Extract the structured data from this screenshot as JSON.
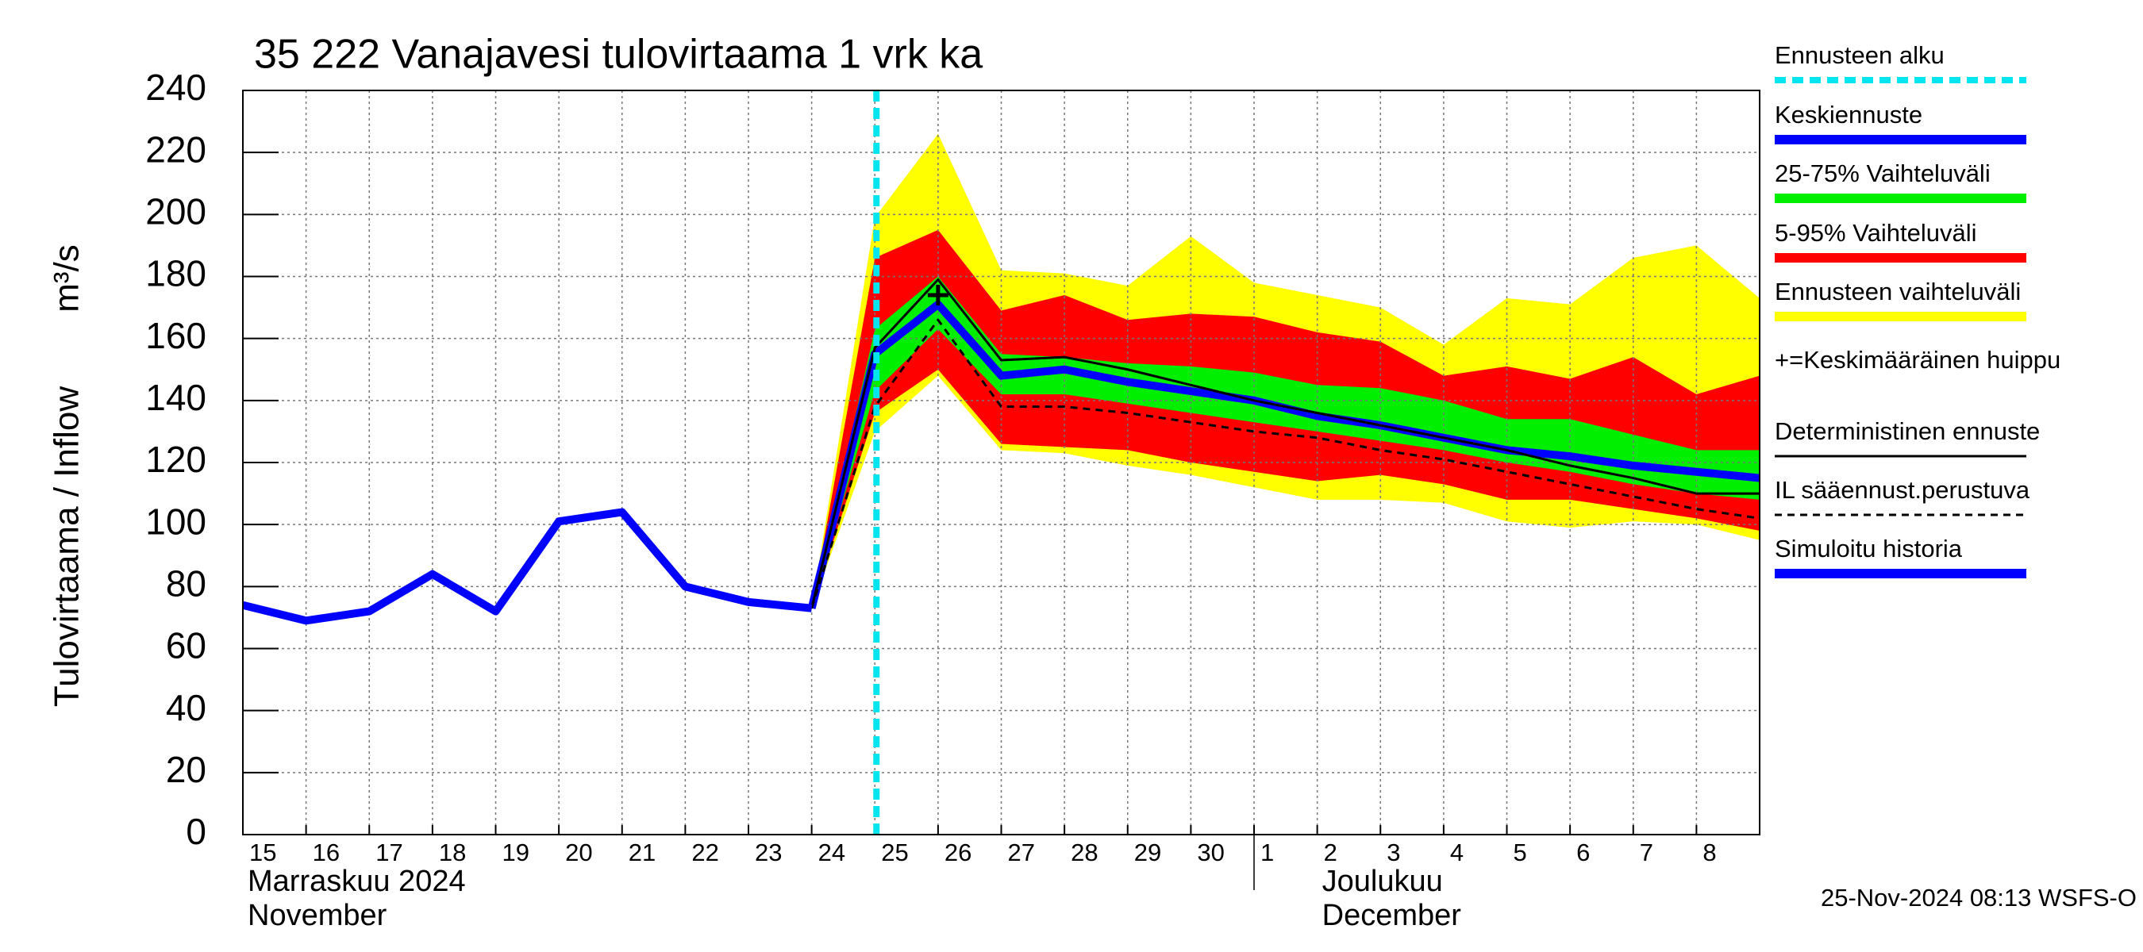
{
  "chart_data": {
    "type": "line",
    "title": "35 222 Vanajavesi tulovirtaama 1 vrk ka",
    "y_label": "Tulovirtaama / Inflow",
    "y_unit": "m³/s",
    "footer": "25-Nov-2024 08:13 WSFS-O",
    "categories": [
      "15",
      "16",
      "17",
      "18",
      "19",
      "20",
      "21",
      "22",
      "23",
      "24",
      "25",
      "26",
      "27",
      "28",
      "29",
      "30",
      "1",
      "2",
      "3",
      "4",
      "5",
      "6",
      "7",
      "8",
      null
    ],
    "month_labels": [
      [
        "Marraskuu 2024",
        "November"
      ],
      [
        "Joulukuu",
        "December"
      ]
    ],
    "ylim": [
      0,
      240
    ],
    "yticks": [
      0,
      20,
      40,
      60,
      80,
      100,
      120,
      140,
      160,
      180,
      200,
      220,
      240
    ],
    "grid": true,
    "series": [
      {
        "name": "Ennusteen alku",
        "color": "#00e5ee",
        "kind": "vline",
        "x": 10
      },
      {
        "name": "Keskiennuste",
        "color": "#0000ff",
        "kind": "line",
        "style": "thick",
        "values": [
          null,
          null,
          null,
          null,
          null,
          null,
          null,
          null,
          null,
          73,
          155,
          171,
          148,
          150,
          146,
          143,
          140,
          135,
          132,
          128,
          124,
          122,
          119,
          117,
          115
        ]
      },
      {
        "name": "25-75% Vaihteluväli",
        "color": "#00ee00",
        "kind": "band",
        "upper": [
          null,
          null,
          null,
          null,
          null,
          null,
          null,
          null,
          null,
          73,
          163,
          180,
          155,
          154,
          152,
          151,
          149,
          145,
          144,
          140,
          134,
          134,
          129,
          124,
          124
        ],
        "lower": [
          null,
          null,
          null,
          null,
          null,
          null,
          null,
          null,
          null,
          73,
          143,
          163,
          142,
          142,
          139,
          136,
          133,
          130,
          127,
          124,
          120,
          117,
          113,
          110,
          108
        ]
      },
      {
        "name": "5-95% Vaihteluväli",
        "color": "#ff0000",
        "kind": "band",
        "upper": [
          null,
          null,
          null,
          null,
          null,
          null,
          null,
          null,
          null,
          73,
          186,
          195,
          169,
          174,
          166,
          168,
          167,
          162,
          159,
          148,
          151,
          147,
          154,
          142,
          148
        ],
        "lower": [
          null,
          null,
          null,
          null,
          null,
          null,
          null,
          null,
          null,
          73,
          136,
          150,
          126,
          125,
          124,
          120,
          117,
          114,
          116,
          113,
          108,
          108,
          105,
          102,
          98
        ]
      },
      {
        "name": "Ennusteen vaihteluväli",
        "color": "#ffff00",
        "kind": "band",
        "upper": [
          null,
          null,
          null,
          null,
          null,
          null,
          null,
          null,
          null,
          73,
          199,
          226,
          182,
          181,
          177,
          193,
          178,
          174,
          170,
          158,
          173,
          171,
          186,
          190,
          173
        ],
        "lower": [
          null,
          null,
          null,
          null,
          null,
          null,
          null,
          null,
          null,
          73,
          130,
          148,
          124,
          123,
          119,
          116,
          112,
          108,
          108,
          107,
          101,
          99,
          101,
          100,
          95
        ]
      },
      {
        "name": "+=Keskimääräinen huippu",
        "color": "#000000",
        "kind": "marker",
        "x": 11,
        "value": 174
      },
      {
        "name": "Deterministinen ennuste",
        "color": "#000000",
        "kind": "line",
        "style": "thin",
        "values": [
          null,
          null,
          null,
          null,
          null,
          null,
          null,
          null,
          null,
          73,
          157,
          179,
          153,
          154,
          150,
          145,
          140,
          136,
          132,
          128,
          124,
          119,
          115,
          110,
          110
        ]
      },
      {
        "name": "IL sääennust.perustuva",
        "color": "#000000",
        "kind": "line",
        "style": "dashed",
        "values": [
          null,
          null,
          null,
          null,
          null,
          null,
          null,
          null,
          null,
          73,
          138,
          166,
          138,
          138,
          136,
          133,
          130,
          128,
          124,
          121,
          117,
          113,
          109,
          105,
          102
        ]
      },
      {
        "name": "Simuloitu historia",
        "color": "#0000ff",
        "kind": "line",
        "style": "thick",
        "values": [
          74,
          69,
          72,
          84,
          72,
          101,
          104,
          80,
          75,
          73,
          null,
          null,
          null,
          null,
          null,
          null,
          null,
          null,
          null,
          null,
          null,
          null,
          null,
          null,
          null
        ]
      }
    ]
  }
}
